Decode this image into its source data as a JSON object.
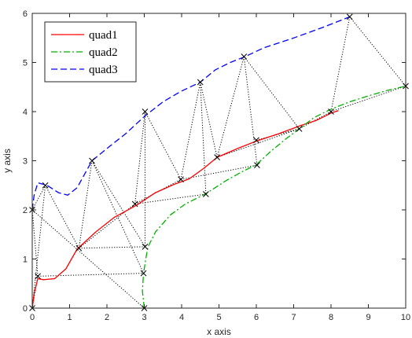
{
  "chart_data": {
    "type": "line",
    "title": "",
    "xlabel": "x axis",
    "ylabel": "y axis",
    "xlim": [
      0,
      10
    ],
    "ylim": [
      0,
      6
    ],
    "xticks": [
      0,
      1,
      2,
      3,
      4,
      5,
      6,
      7,
      8,
      9,
      10
    ],
    "yticks": [
      0,
      1,
      2,
      3,
      4,
      5,
      6
    ],
    "grid": false,
    "legend_position": "top-left",
    "series": [
      {
        "name": "quad1",
        "color": "#ff0000",
        "style": "solid",
        "points": [
          [
            0,
            0
          ],
          [
            0.05,
            0.3
          ],
          [
            0.15,
            0.6
          ],
          [
            0.3,
            0.58
          ],
          [
            0.6,
            0.6
          ],
          [
            0.9,
            0.8
          ],
          [
            1.2,
            1.2
          ],
          [
            1.7,
            1.55
          ],
          [
            2.2,
            1.85
          ],
          [
            2.8,
            2.1
          ],
          [
            3.3,
            2.35
          ],
          [
            3.8,
            2.52
          ],
          [
            4.2,
            2.63
          ],
          [
            4.6,
            2.85
          ],
          [
            4.95,
            3.07
          ],
          [
            5.5,
            3.25
          ],
          [
            6,
            3.4
          ],
          [
            6.6,
            3.55
          ],
          [
            7.2,
            3.72
          ],
          [
            7.6,
            3.82
          ],
          [
            8,
            3.97
          ],
          [
            8.2,
            4.02
          ]
        ]
      },
      {
        "name": "quad2",
        "color": "#00b000",
        "style": "dashdot",
        "points": [
          [
            3,
            0
          ],
          [
            2.95,
            0.35
          ],
          [
            2.98,
            0.7
          ],
          [
            3.05,
            1.05
          ],
          [
            3.1,
            1.25
          ],
          [
            3.3,
            1.55
          ],
          [
            3.7,
            1.9
          ],
          [
            4.1,
            2.12
          ],
          [
            4.65,
            2.33
          ],
          [
            5.2,
            2.6
          ],
          [
            5.6,
            2.77
          ],
          [
            6,
            2.92
          ],
          [
            6.4,
            3.2
          ],
          [
            6.8,
            3.45
          ],
          [
            7.15,
            3.65
          ],
          [
            7.55,
            3.88
          ],
          [
            8,
            4.05
          ],
          [
            8.5,
            4.2
          ],
          [
            9,
            4.32
          ],
          [
            9.5,
            4.43
          ],
          [
            10,
            4.52
          ]
        ]
      },
      {
        "name": "quad3",
        "color": "#0000ff",
        "style": "dashed",
        "points": [
          [
            0,
            2
          ],
          [
            0.05,
            2.3
          ],
          [
            0.15,
            2.55
          ],
          [
            0.4,
            2.5
          ],
          [
            0.7,
            2.35
          ],
          [
            0.95,
            2.3
          ],
          [
            1.2,
            2.45
          ],
          [
            1.6,
            3
          ],
          [
            2,
            3.25
          ],
          [
            2.5,
            3.55
          ],
          [
            3,
            3.9
          ],
          [
            3.5,
            4.2
          ],
          [
            4,
            4.42
          ],
          [
            4.5,
            4.6
          ],
          [
            4.9,
            4.85
          ],
          [
            5.3,
            5
          ],
          [
            5.7,
            5.12
          ],
          [
            6.2,
            5.3
          ],
          [
            7,
            5.5
          ],
          [
            7.8,
            5.72
          ],
          [
            8.5,
            5.93
          ]
        ]
      }
    ],
    "markers": {
      "symbol": "x",
      "color": "#000000",
      "points": [
        [
          0,
          0
        ],
        [
          0.15,
          0.65
        ],
        [
          1.25,
          1.22
        ],
        [
          2.75,
          2.12
        ],
        [
          3.98,
          2.62
        ],
        [
          4.95,
          3.07
        ],
        [
          6,
          3.42
        ],
        [
          8,
          4
        ],
        [
          3,
          0
        ],
        [
          2.98,
          0.71
        ],
        [
          3.02,
          1.25
        ],
        [
          4.65,
          2.32
        ],
        [
          6.02,
          2.91
        ],
        [
          7.15,
          3.65
        ],
        [
          10,
          4.52
        ],
        [
          0,
          2
        ],
        [
          0.35,
          2.5
        ],
        [
          1.6,
          3
        ],
        [
          3.02,
          4
        ],
        [
          4.5,
          4.6
        ],
        [
          5.67,
          5.12
        ],
        [
          8.5,
          5.93
        ]
      ]
    },
    "connectors": {
      "color": "#000000",
      "style": "dotted",
      "segments": [
        [
          [
            0,
            0
          ],
          [
            0.15,
            0.65
          ]
        ],
        [
          [
            0.15,
            0.65
          ],
          [
            0,
            2
          ]
        ],
        [
          [
            0,
            2
          ],
          [
            0.35,
            2.5
          ]
        ],
        [
          [
            0,
            0
          ],
          [
            0.35,
            2.5
          ]
        ],
        [
          [
            0.15,
            0.65
          ],
          [
            2.98,
            0.71
          ]
        ],
        [
          [
            0.35,
            2.5
          ],
          [
            1.25,
            1.22
          ]
        ],
        [
          [
            0,
            2
          ],
          [
            3,
            0
          ]
        ],
        [
          [
            1.25,
            1.22
          ],
          [
            3.02,
            1.25
          ]
        ],
        [
          [
            1.25,
            1.22
          ],
          [
            1.6,
            3
          ]
        ],
        [
          [
            1.6,
            3
          ],
          [
            2.98,
            0.71
          ]
        ],
        [
          [
            1.6,
            3
          ],
          [
            3.02,
            1.25
          ]
        ],
        [
          [
            1.25,
            1.22
          ],
          [
            2.75,
            2.12
          ]
        ],
        [
          [
            2.75,
            2.12
          ],
          [
            3.02,
            4
          ]
        ],
        [
          [
            3.02,
            4
          ],
          [
            3.02,
            1.25
          ]
        ],
        [
          [
            2.75,
            2.12
          ],
          [
            3.98,
            2.62
          ]
        ],
        [
          [
            2.75,
            2.12
          ],
          [
            4.65,
            2.32
          ]
        ],
        [
          [
            3.02,
            4
          ],
          [
            3.98,
            2.62
          ]
        ],
        [
          [
            3.98,
            2.62
          ],
          [
            4.5,
            4.6
          ]
        ],
        [
          [
            4.5,
            4.6
          ],
          [
            4.65,
            2.32
          ]
        ],
        [
          [
            4.5,
            4.6
          ],
          [
            4.95,
            3.07
          ]
        ],
        [
          [
            3.98,
            2.62
          ],
          [
            6.02,
            2.91
          ]
        ],
        [
          [
            4.95,
            3.07
          ],
          [
            5.67,
            5.12
          ]
        ],
        [
          [
            5.67,
            5.12
          ],
          [
            6.02,
            2.91
          ]
        ],
        [
          [
            4.95,
            3.07
          ],
          [
            7.15,
            3.65
          ]
        ],
        [
          [
            5.67,
            5.12
          ],
          [
            7.15,
            3.65
          ]
        ],
        [
          [
            6,
            3.42
          ],
          [
            7.15,
            3.65
          ]
        ],
        [
          [
            7.15,
            3.65
          ],
          [
            8,
            4
          ]
        ],
        [
          [
            8,
            4
          ],
          [
            8.5,
            5.93
          ]
        ],
        [
          [
            8.5,
            5.93
          ],
          [
            10,
            4.52
          ]
        ],
        [
          [
            8,
            4
          ],
          [
            10,
            4.52
          ]
        ]
      ]
    }
  }
}
